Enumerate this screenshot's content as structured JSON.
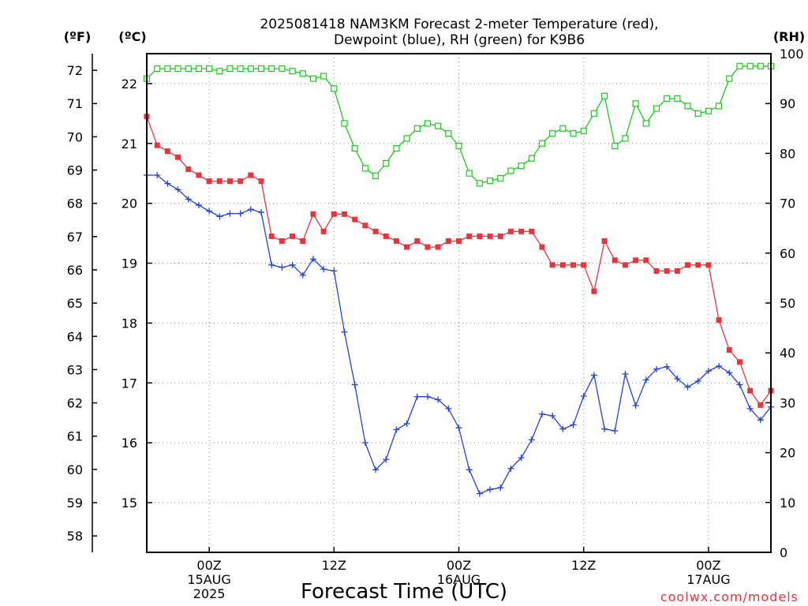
{
  "chart_data": {
    "type": "line",
    "title": "2025081418 NAM3KM Forecast 2-meter Temperature (red),",
    "subtitle": "Dewpoint (blue), RH (green) for K9B6",
    "xlabel": "Forecast Time (UTC)",
    "credit": "coolwx.com/models",
    "units": {
      "fahrenheit": "(ºF)",
      "celsius": "(ºC)",
      "rh": "(RH)"
    },
    "x_unit": "forecast hour from 2025-08-14 18Z",
    "xlim": [
      0,
      60
    ],
    "x_ticks": [
      {
        "hour": 6,
        "lines": [
          "00Z",
          "15AUG",
          "2025"
        ]
      },
      {
        "hour": 18,
        "lines": [
          "12Z"
        ]
      },
      {
        "hour": 30,
        "lines": [
          "00Z",
          "16AUG"
        ]
      },
      {
        "hour": 42,
        "lines": [
          "12Z"
        ]
      },
      {
        "hour": 54,
        "lines": [
          "00Z",
          "17AUG"
        ]
      }
    ],
    "y_celsius": {
      "lim": [
        14.17,
        22.5
      ],
      "ticks": [
        15,
        16,
        17,
        18,
        19,
        20,
        21,
        22
      ]
    },
    "y_fahrenheit": {
      "ticks": [
        58,
        59,
        60,
        61,
        62,
        63,
        64,
        65,
        66,
        67,
        68,
        69,
        70,
        71,
        72
      ]
    },
    "y_rh": {
      "lim": [
        0,
        100
      ],
      "ticks": [
        0,
        10,
        20,
        30,
        40,
        50,
        60,
        70,
        80,
        90,
        100
      ]
    },
    "grid": true,
    "series": [
      {
        "name": "2-meter Temperature",
        "color": "#e8343c",
        "marker": "filled-square",
        "axis": "celsius",
        "values": [
          21.45,
          20.97,
          20.87,
          20.77,
          20.57,
          20.47,
          20.37,
          20.37,
          20.37,
          20.37,
          20.47,
          20.37,
          19.45,
          19.37,
          19.45,
          19.37,
          19.82,
          19.53,
          19.82,
          19.82,
          19.73,
          19.63,
          19.53,
          19.45,
          19.37,
          19.27,
          19.37,
          19.27,
          19.27,
          19.37,
          19.37,
          19.45,
          19.45,
          19.45,
          19.45,
          19.53,
          19.53,
          19.53,
          19.27,
          18.97,
          18.97,
          18.97,
          18.97,
          18.53,
          19.37,
          19.05,
          18.97,
          19.05,
          19.05,
          18.87,
          18.87,
          18.87,
          18.97,
          18.97,
          18.97,
          18.05,
          17.55,
          17.35,
          16.87,
          16.63,
          16.87
        ]
      },
      {
        "name": "Dewpoint",
        "color": "#2342d8",
        "marker": "plus",
        "axis": "celsius",
        "values": [
          20.47,
          20.47,
          20.33,
          20.23,
          20.07,
          19.97,
          19.87,
          19.78,
          19.83,
          19.83,
          19.9,
          19.85,
          18.97,
          18.93,
          18.97,
          18.8,
          19.07,
          18.9,
          18.87,
          17.85,
          16.97,
          16.0,
          15.55,
          15.72,
          16.22,
          16.32,
          16.77,
          16.77,
          16.72,
          16.57,
          16.25,
          15.55,
          15.15,
          15.22,
          15.25,
          15.57,
          15.75,
          16.05,
          16.48,
          16.45,
          16.23,
          16.3,
          16.78,
          17.13,
          16.23,
          16.2,
          17.15,
          16.62,
          17.05,
          17.23,
          17.27,
          17.07,
          16.93,
          17.03,
          17.2,
          17.28,
          17.17,
          16.97,
          16.57,
          16.38,
          16.6
        ]
      },
      {
        "name": "RH",
        "color": "#1ec81e",
        "marker": "open-square",
        "axis": "rh",
        "values": [
          95,
          97,
          97,
          97,
          97,
          97,
          97,
          96.5,
          97,
          97,
          97,
          97,
          97,
          97,
          96.5,
          96,
          95,
          95.5,
          93,
          86,
          81,
          77,
          75.5,
          78,
          81,
          83,
          85,
          86,
          85.5,
          84,
          81.5,
          76,
          74,
          74.5,
          75,
          76.5,
          77.5,
          79,
          82,
          84,
          85,
          84,
          84.5,
          88,
          91.5,
          81.5,
          83,
          90,
          86,
          89,
          91,
          91,
          89.5,
          88,
          88.5,
          89.5,
          95,
          97.5,
          97.5,
          97.5,
          97.5
        ]
      }
    ]
  }
}
